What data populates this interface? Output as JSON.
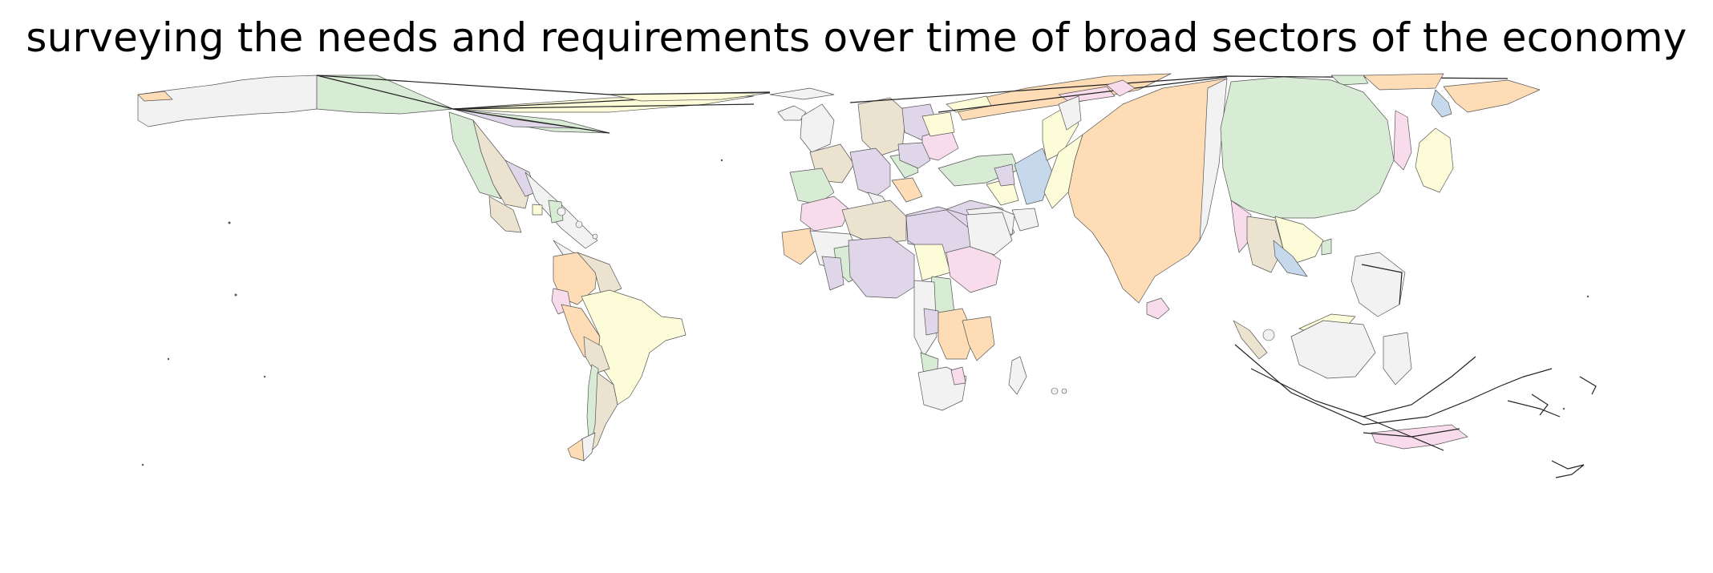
{
  "title": "surveying the needs and requirements over time of broad sectors of the economy",
  "map": {
    "projection": "cartogram",
    "palette": {
      "orange": "#fddcb6",
      "green": "#d8ebd4",
      "purple": "#e0d6ea",
      "yellow": "#fdfcd9",
      "pink": "#f9dcec",
      "tan": "#ece2d0",
      "gray": "#f2f2f2",
      "blue": "#c6d9ec",
      "outline": "#555555"
    }
  }
}
